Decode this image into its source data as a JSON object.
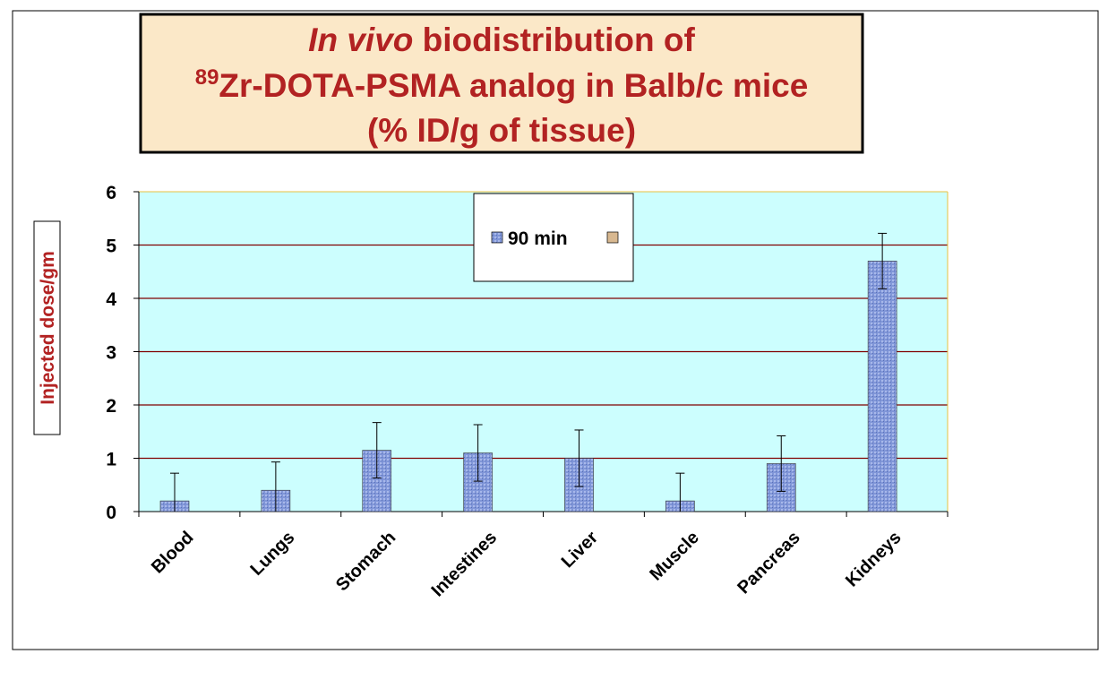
{
  "chart_data": {
    "type": "bar",
    "title": {
      "italic": "In vivo",
      "line1": "biodistribution of",
      "superscript": "89",
      "line2": "Zr-DOTA-PSMA analog in Balb/c mice",
      "line3": "(% ID/g of tissue)"
    },
    "y_label": "Injected dose/gm",
    "categories": [
      "Blood",
      "Lungs",
      "Stomach",
      "Intestines",
      "Liver",
      "Muscle",
      "Pancreas",
      "Kidneys"
    ],
    "series": [
      {
        "name": "90 min",
        "color": "#8096d8",
        "values": [
          0.2,
          0.4,
          1.15,
          1.1,
          1.0,
          0.2,
          0.9,
          4.7
        ],
        "errors": [
          0.52,
          0.53,
          0.52,
          0.53,
          0.53,
          0.52,
          0.52,
          0.52
        ]
      }
    ],
    "ylim": [
      0,
      6
    ],
    "yticks": [
      0,
      1,
      2,
      3,
      4,
      5,
      6
    ],
    "grid": true
  }
}
